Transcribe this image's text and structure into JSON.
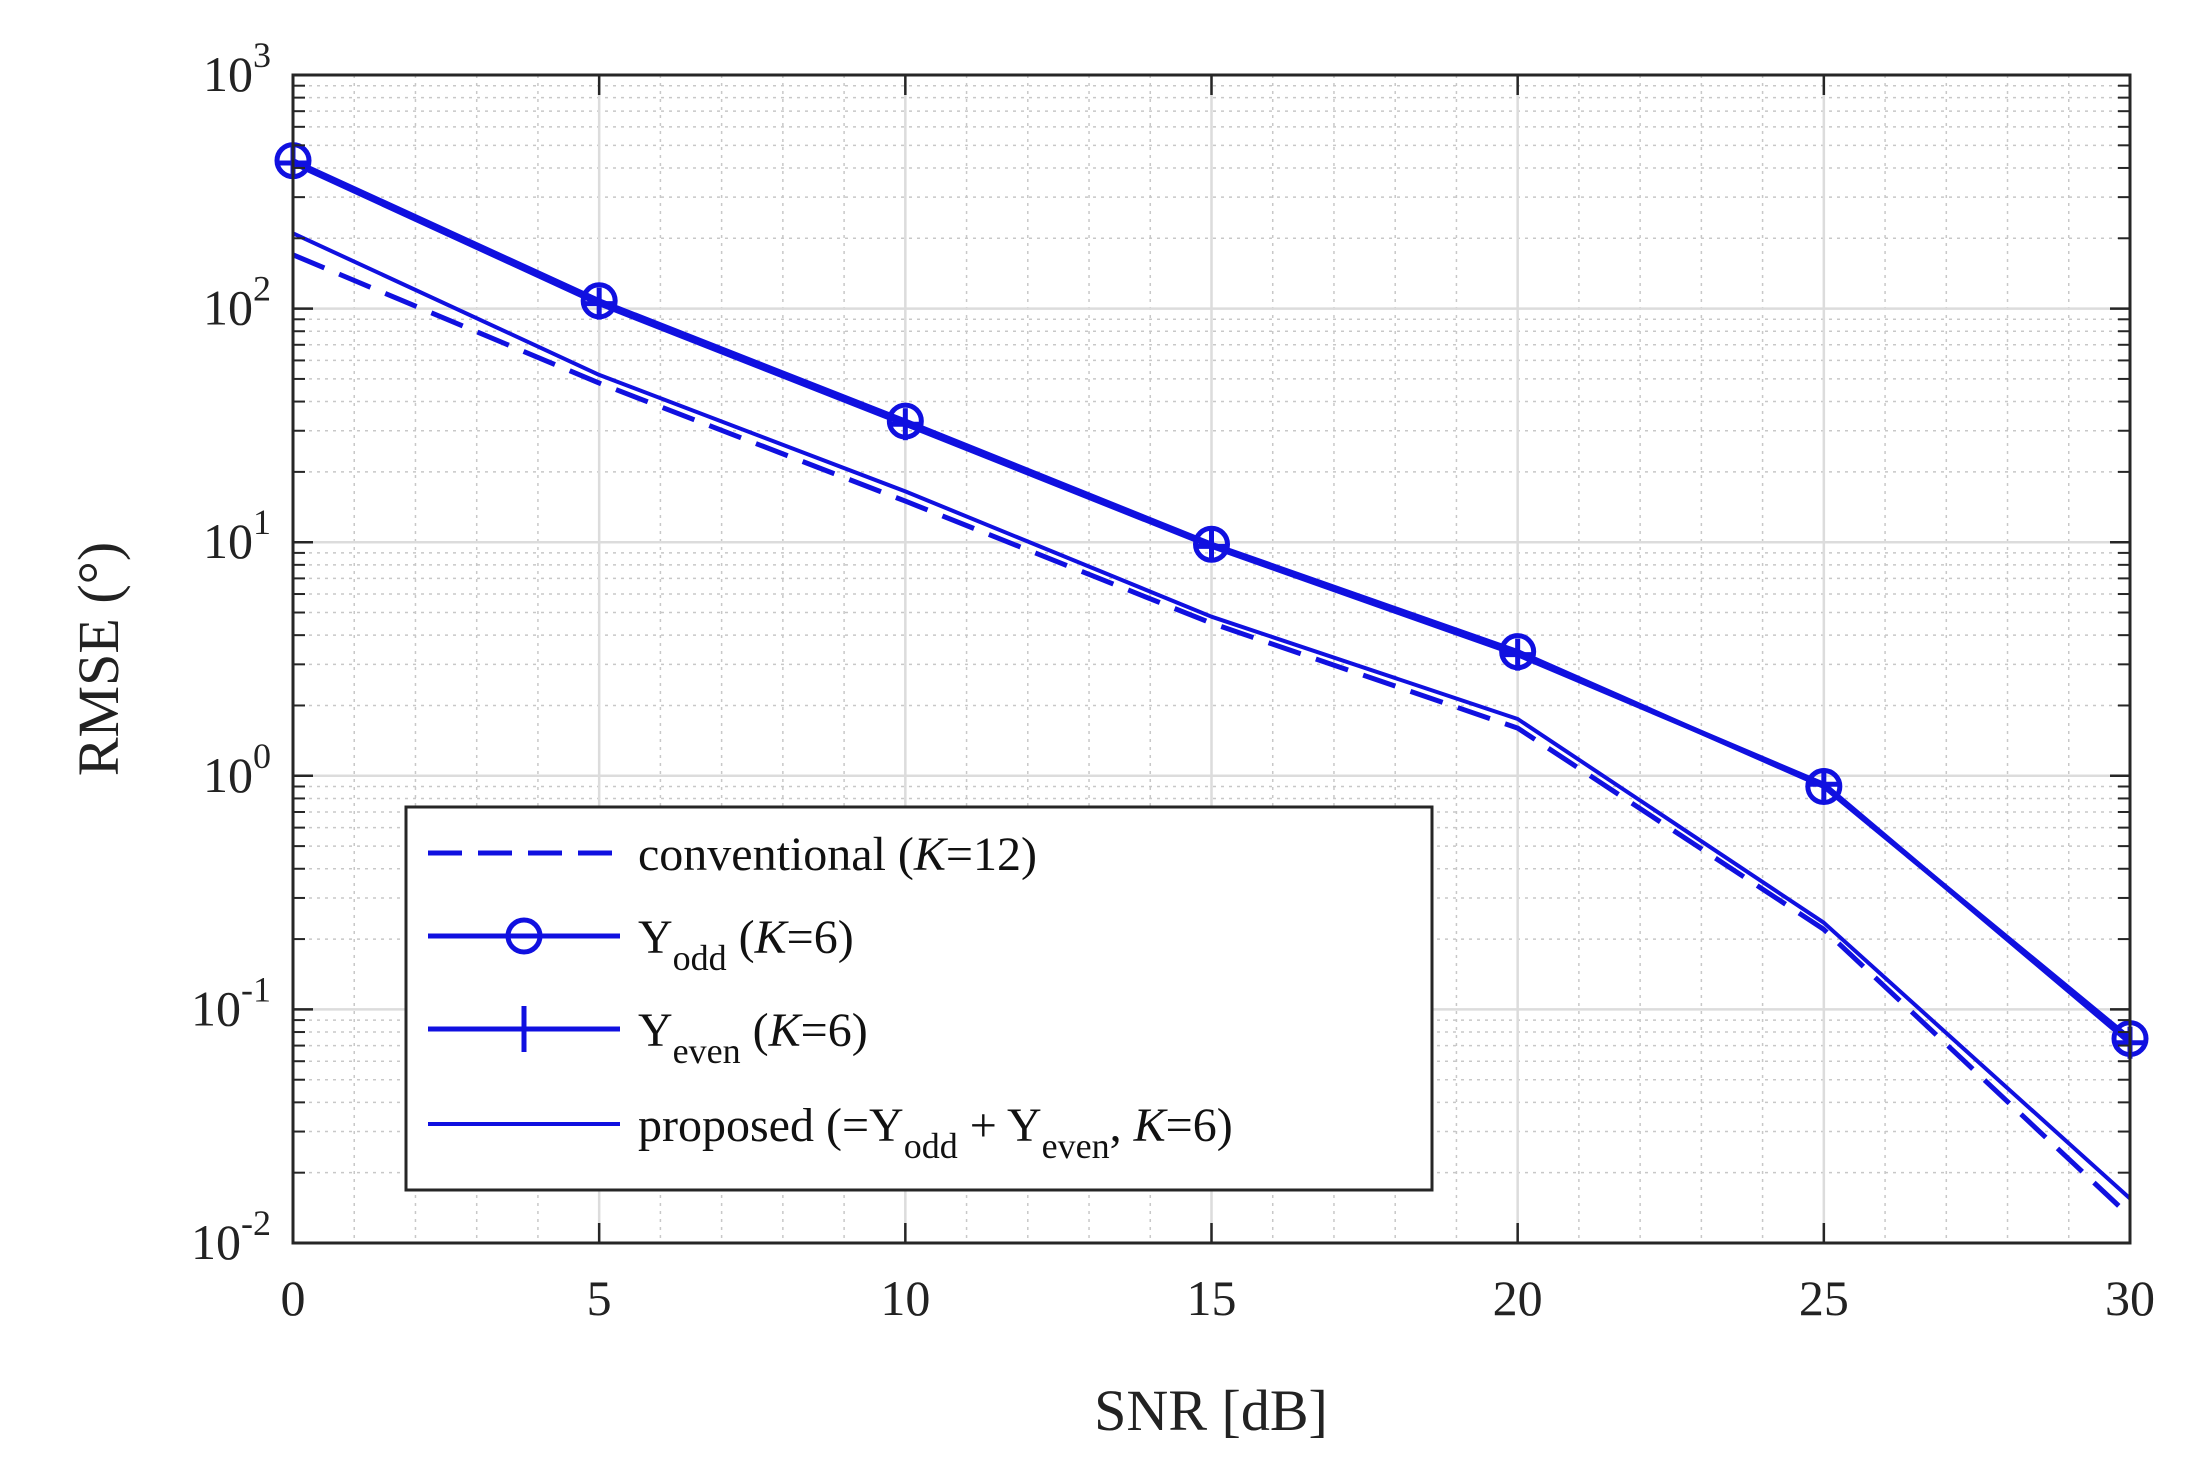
{
  "chart_data": {
    "type": "line",
    "title": "",
    "xlabel": "SNR [dB]",
    "ylabel": "RMSE (°)",
    "x": [
      0,
      5,
      10,
      15,
      20,
      25,
      30
    ],
    "xlim": [
      0,
      30
    ],
    "ylim": [
      0.01,
      1000
    ],
    "yscale": "log",
    "grid": true,
    "minor_grid": true,
    "x_ticks": [
      "0",
      "5",
      "10",
      "15",
      "20",
      "25",
      "30"
    ],
    "y_ticks": [
      {
        "base": "10",
        "exp": "-2"
      },
      {
        "base": "10",
        "exp": "-1"
      },
      {
        "base": "10",
        "exp": "0"
      },
      {
        "base": "10",
        "exp": "1"
      },
      {
        "base": "10",
        "exp": "2"
      },
      {
        "base": "10",
        "exp": "3"
      }
    ],
    "legend_position": "lower-left",
    "series": [
      {
        "name": "conventional (K=12)",
        "style": "dashed",
        "marker": "none",
        "color": "#1010e0",
        "values": [
          170,
          48,
          15,
          4.5,
          1.6,
          0.22,
          0.013
        ],
        "legend_parts": {
          "text": "conventional (",
          "k": "K",
          "rest": "=12)"
        }
      },
      {
        "name": "Y_odd (K=6)",
        "style": "solid",
        "marker": "circle",
        "color": "#1010e0",
        "values": [
          430,
          108,
          33,
          9.8,
          3.4,
          0.9,
          0.075
        ],
        "legend_parts": {
          "y": "Y",
          "sub": "odd",
          "text": " (",
          "k": "K",
          "rest": "=6)"
        }
      },
      {
        "name": "Y_even (K=6)",
        "style": "solid",
        "marker": "plus",
        "color": "#1010e0",
        "values": [
          420,
          105,
          32,
          9.6,
          3.3,
          0.92,
          0.072
        ],
        "legend_parts": {
          "y": "Y",
          "sub": "even",
          "text": " (",
          "k": "K",
          "rest": "=6)"
        }
      },
      {
        "name": "proposed (=Y_odd + Y_even, K=6)",
        "style": "solid",
        "marker": "none",
        "color": "#1010e0",
        "values": [
          210,
          52,
          16.5,
          4.8,
          1.75,
          0.235,
          0.0155
        ],
        "legend_parts": {
          "a": "proposed (=Y",
          "sub1": "odd",
          "b": " + Y",
          "sub2": "even",
          "c": ",  ",
          "k": "K",
          "rest": "=6)"
        }
      }
    ]
  }
}
